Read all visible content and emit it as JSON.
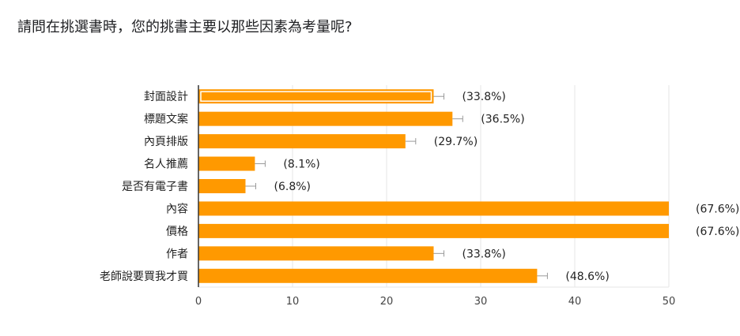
{
  "question": {
    "title": "請問在挑選書時，您的挑書主要以那些因素為考量呢?"
  },
  "colors": {
    "bar": "#ff9900",
    "grid": "#e6e6e6",
    "axis": "#333333",
    "error_bar": "#999999"
  },
  "chart_data": {
    "type": "bar",
    "orientation": "horizontal",
    "categories": [
      "封面設計",
      "標題文案",
      "內頁排版",
      "名人推薦",
      "是否有電子書",
      "內容",
      "價格",
      "作者",
      "老師說要買我才買"
    ],
    "values": [
      25,
      27,
      22,
      6,
      5,
      50,
      50,
      25,
      36
    ],
    "data_labels": [
      "(33.8%)",
      "(36.5%)",
      "(29.7%)",
      "(8.1%)",
      "(6.8%)",
      "(67.6%)",
      "(67.6%)",
      "(33.8%)",
      "(48.6%)"
    ],
    "xlim": [
      0,
      50
    ],
    "x_ticks": [
      "0",
      "10",
      "20",
      "30",
      "40",
      "50"
    ],
    "grid": true,
    "highlighted_category": "封面設計",
    "error_bars": true
  }
}
